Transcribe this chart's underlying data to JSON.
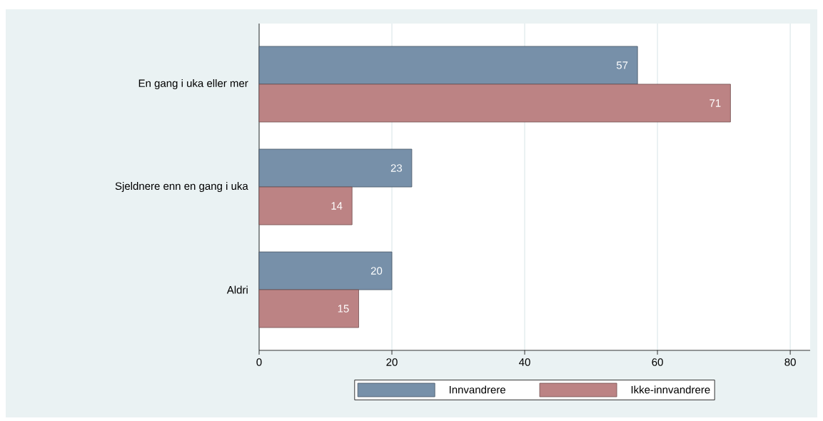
{
  "chart_data": {
    "type": "bar",
    "orientation": "horizontal",
    "categories": [
      "En gang i uka eller mer",
      "Sjeldnere enn en gang i uka",
      "Aldri"
    ],
    "series": [
      {
        "name": "Innvandrere",
        "color": "#7790a9",
        "values": [
          57,
          23,
          20
        ]
      },
      {
        "name": "Ikke-innvandrere",
        "color": "#bc8384",
        "values": [
          71,
          14,
          15
        ]
      }
    ],
    "xlim": [
      0,
      83
    ],
    "xticks": [
      0,
      20,
      40,
      60,
      80
    ],
    "grid": "x",
    "legend": "bottom",
    "data_labels": true
  }
}
